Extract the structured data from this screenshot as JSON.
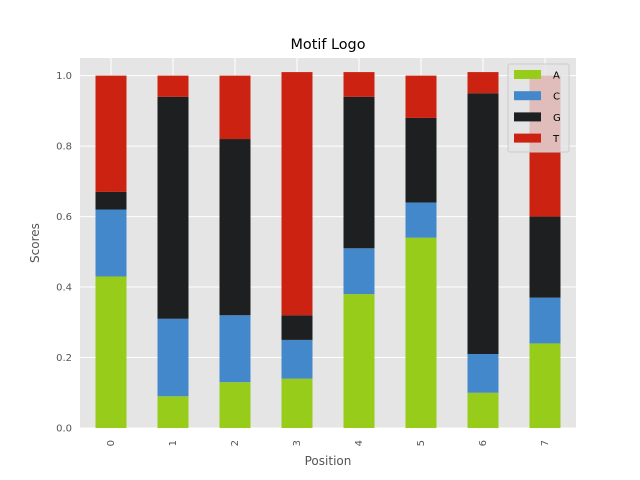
{
  "chart_data": {
    "type": "bar",
    "stacked": true,
    "title": "Motif Logo",
    "xlabel": "Position",
    "ylabel": "Scores",
    "categories": [
      "0",
      "1",
      "2",
      "3",
      "4",
      "5",
      "6",
      "7"
    ],
    "ylim": [
      0,
      1.05
    ],
    "yticks": [
      "0.0",
      "0.2",
      "0.4",
      "0.6",
      "0.8",
      "1.0"
    ],
    "ytick_values": [
      0,
      0.2,
      0.4,
      0.6,
      0.8,
      1.0
    ],
    "grid": true,
    "legend_position": "top-right",
    "series": [
      {
        "name": "A",
        "color": "#97cc1a",
        "values": [
          0.43,
          0.09,
          0.13,
          0.14,
          0.38,
          0.54,
          0.1,
          0.24
        ]
      },
      {
        "name": "C",
        "color": "#4488cc",
        "values": [
          0.19,
          0.22,
          0.19,
          0.11,
          0.13,
          0.1,
          0.11,
          0.13
        ]
      },
      {
        "name": "G",
        "color": "#1d1f20",
        "values": [
          0.05,
          0.63,
          0.5,
          0.07,
          0.43,
          0.24,
          0.74,
          0.23
        ]
      },
      {
        "name": "T",
        "color": "#cc2211",
        "values": [
          0.33,
          0.06,
          0.18,
          0.69,
          0.07,
          0.12,
          0.06,
          0.4
        ]
      }
    ]
  }
}
